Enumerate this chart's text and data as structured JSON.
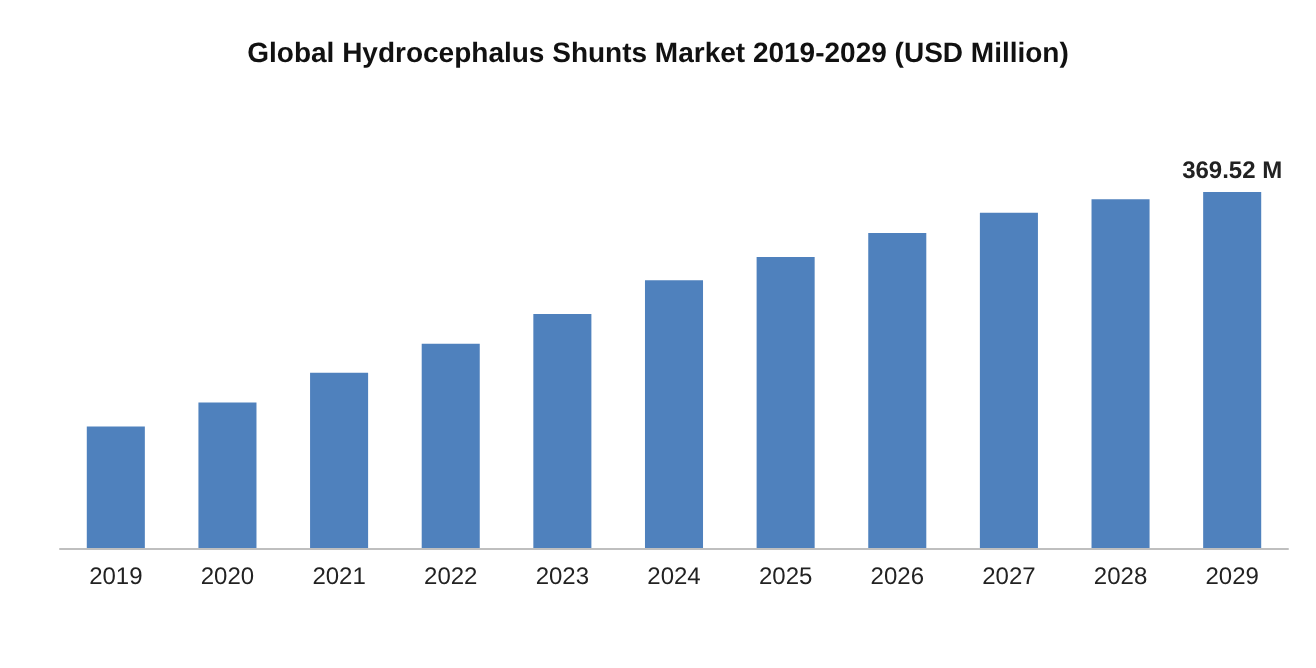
{
  "chart_data": {
    "type": "bar",
    "title": "Global Hydrocephalus Shunts Market 2019-2029 (USD Million)",
    "categories": [
      "2019",
      "2020",
      "2021",
      "2022",
      "2023",
      "2024",
      "2025",
      "2026",
      "2027",
      "2028",
      "2029"
    ],
    "values": [
      126,
      151,
      182,
      212,
      243,
      278,
      302,
      327,
      348,
      362,
      369.52
    ],
    "value_labels": [
      null,
      null,
      null,
      null,
      null,
      null,
      null,
      null,
      null,
      null,
      "369.52 M"
    ],
    "color": "#4f81bd"
  }
}
